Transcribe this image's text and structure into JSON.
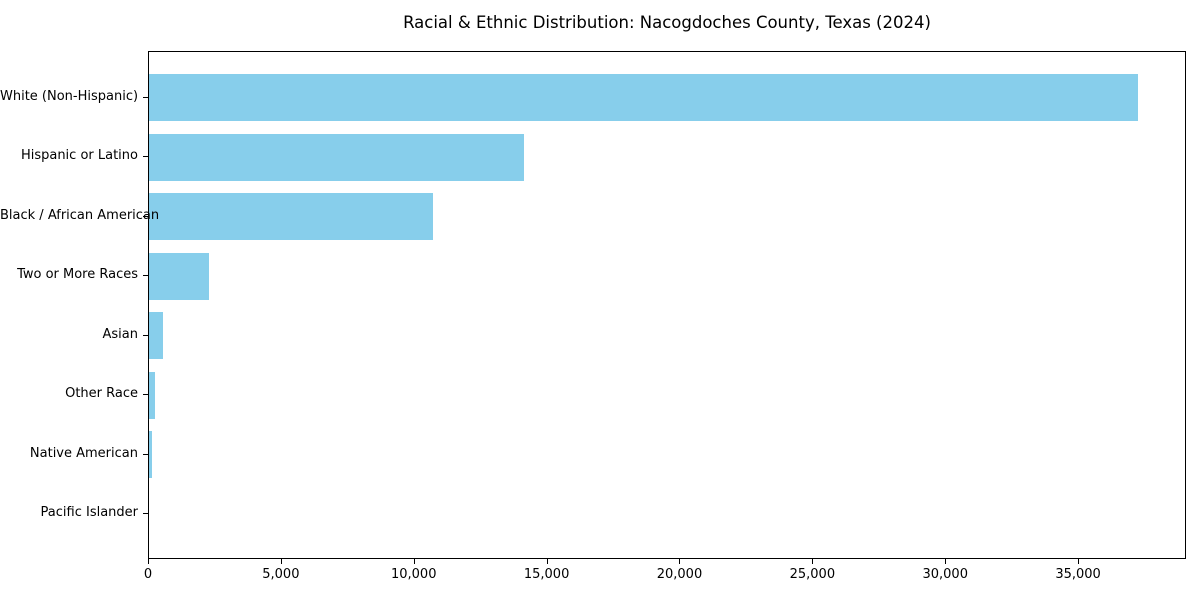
{
  "title": "Racial & Ethnic Distribution: Nacogdoches County, Texas (2024)",
  "chart_data": {
    "type": "bar",
    "orientation": "horizontal",
    "title": "Racial & Ethnic Distribution: Nacogdoches County, Texas (2024)",
    "categories": [
      "White (Non-Hispanic)",
      "Hispanic or Latino",
      "Black / African American",
      "Two or More Races",
      "Asian",
      "Other Race",
      "Native American",
      "Pacific Islander"
    ],
    "values": [
      37200,
      14100,
      10700,
      2250,
      530,
      220,
      100,
      0
    ],
    "xlabel": "",
    "ylabel": "",
    "xlim": [
      0,
      39060
    ],
    "xticks": [
      0,
      5000,
      10000,
      15000,
      20000,
      25000,
      30000,
      35000
    ],
    "xtick_labels": [
      "0",
      "5,000",
      "10,000",
      "15,000",
      "20,000",
      "25,000",
      "30,000",
      "35,000"
    ],
    "bar_color": "#87CEEB",
    "axis_color": "#000000",
    "text_color": "#000000",
    "background_color": "#ffffff",
    "grid": false,
    "legend": null
  }
}
